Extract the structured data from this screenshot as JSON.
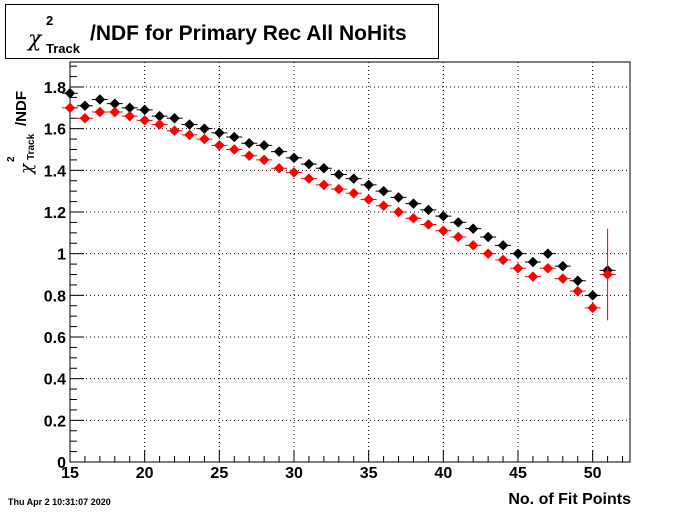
{
  "title": {
    "symbol": "χ",
    "superscript": "2",
    "subscript": "Track",
    "text": "/NDF for Primary Rec All NoHits"
  },
  "y_axis_label": {
    "symbol": "χ",
    "superscript": "2",
    "subscript": "Track",
    "text": "/NDF"
  },
  "timestamp": "Thu Apr  2 10:31:07 2020",
  "chart_data": {
    "type": "scatter",
    "title": "χ²_Track/NDF for Primary Rec All NoHits",
    "xlabel": "No. of Fit Points",
    "ylabel": "χ²_Track/NDF",
    "xlim": [
      15,
      52.5
    ],
    "ylim": [
      0,
      1.92
    ],
    "x_ticks": [
      "15",
      "20",
      "25",
      "30",
      "35",
      "40",
      "45",
      "50"
    ],
    "y_ticks": [
      "0",
      "0.2",
      "0.4",
      "0.6",
      "0.8",
      "1",
      "1.2",
      "1.4",
      "1.6",
      "1.8"
    ],
    "grid": true,
    "legend": "none",
    "series": [
      {
        "color": "#000000",
        "x": [
          15,
          16,
          17,
          18,
          19,
          20,
          21,
          22,
          23,
          24,
          25,
          26,
          27,
          28,
          29,
          30,
          31,
          32,
          33,
          34,
          35,
          36,
          37,
          38,
          39,
          40,
          41,
          42,
          43,
          44,
          45,
          46,
          47,
          48,
          49,
          50,
          51
        ],
        "y": [
          1.77,
          1.71,
          1.74,
          1.72,
          1.7,
          1.69,
          1.66,
          1.65,
          1.62,
          1.6,
          1.58,
          1.56,
          1.53,
          1.52,
          1.49,
          1.46,
          1.43,
          1.41,
          1.38,
          1.36,
          1.33,
          1.3,
          1.27,
          1.24,
          1.21,
          1.18,
          1.15,
          1.12,
          1.08,
          1.04,
          1.0,
          0.96,
          1.0,
          0.94,
          0.87,
          0.8,
          0.92
        ],
        "err": [
          0.01,
          0.01,
          0.01,
          0.01,
          0.01,
          0.01,
          0.01,
          0.01,
          0.01,
          0.01,
          0.01,
          0.01,
          0.01,
          0.01,
          0.01,
          0.01,
          0.01,
          0.01,
          0.01,
          0.01,
          0.01,
          0.01,
          0.01,
          0.01,
          0.01,
          0.01,
          0.01,
          0.01,
          0.01,
          0.01,
          0.01,
          0.01,
          0.01,
          0.01,
          0.01,
          0.01,
          0.02
        ]
      },
      {
        "color": "#ff0000",
        "x": [
          15,
          16,
          17,
          18,
          19,
          20,
          21,
          22,
          23,
          24,
          25,
          26,
          27,
          28,
          29,
          30,
          31,
          32,
          33,
          34,
          35,
          36,
          37,
          38,
          39,
          40,
          41,
          42,
          43,
          44,
          45,
          46,
          47,
          48,
          49,
          50,
          51
        ],
        "y": [
          1.7,
          1.65,
          1.68,
          1.68,
          1.66,
          1.64,
          1.62,
          1.59,
          1.57,
          1.55,
          1.52,
          1.5,
          1.47,
          1.45,
          1.41,
          1.39,
          1.36,
          1.33,
          1.31,
          1.29,
          1.26,
          1.23,
          1.2,
          1.17,
          1.14,
          1.11,
          1.08,
          1.04,
          1.0,
          0.97,
          0.93,
          0.89,
          0.93,
          0.88,
          0.82,
          0.74,
          0.9
        ],
        "err": [
          0.01,
          0.01,
          0.01,
          0.01,
          0.01,
          0.01,
          0.01,
          0.01,
          0.01,
          0.01,
          0.01,
          0.01,
          0.01,
          0.01,
          0.01,
          0.01,
          0.01,
          0.01,
          0.01,
          0.01,
          0.01,
          0.01,
          0.01,
          0.01,
          0.01,
          0.01,
          0.01,
          0.01,
          0.01,
          0.01,
          0.01,
          0.01,
          0.01,
          0.01,
          0.02,
          0.02,
          0.22
        ]
      }
    ]
  }
}
